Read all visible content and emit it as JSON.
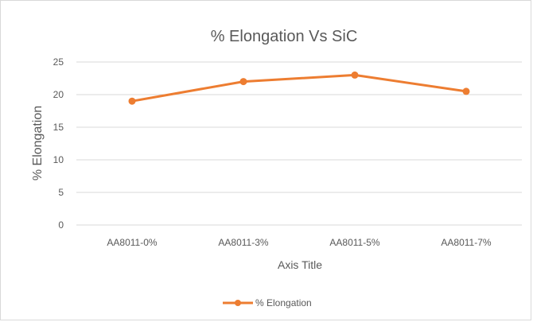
{
  "chart_data": {
    "type": "line",
    "title": "% Elongation Vs SiC",
    "xlabel": "Axis Title",
    "ylabel": "% Elongation",
    "categories": [
      "AA8011-0%",
      "AA8011-3%",
      "AA8011-5%",
      "AA8011-7%"
    ],
    "series": [
      {
        "name": "% Elongation",
        "values": [
          19,
          22,
          23,
          20.5
        ],
        "color": "#ed7d31"
      }
    ],
    "ylim": [
      0,
      25
    ],
    "yticks": [
      "0",
      "5",
      "10",
      "15",
      "20",
      "25"
    ],
    "grid": true,
    "legend": "bottom"
  }
}
